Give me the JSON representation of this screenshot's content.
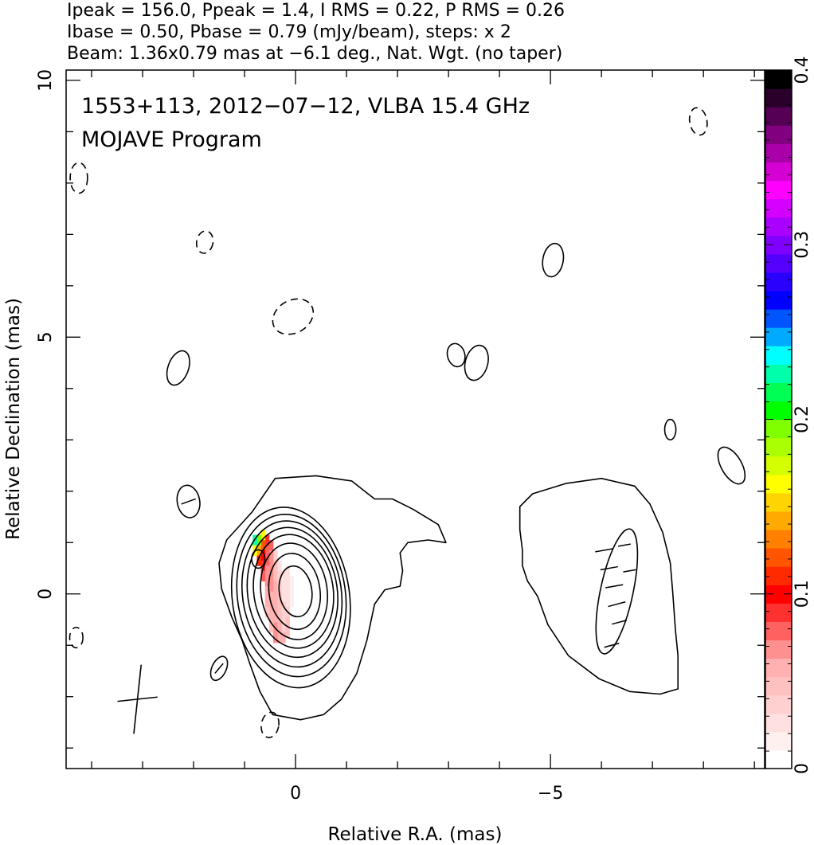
{
  "header": {
    "line1": "Ipeak = 156.0, Ppeak = 1.4, I RMS = 0.22, P RMS = 0.26",
    "line2": "Ibase = 0.50, Pbase = 0.79 (mJy/beam), steps: x 2",
    "line3": "Beam: 1.36x0.79 mas at −6.1 deg., Nat. Wgt. (no taper)"
  },
  "chart_data": {
    "type": "contour",
    "source": "1553+113, 2012−07−12, VLBA 15.4 GHz",
    "program": "MOJAVE Program",
    "xlabel": "Relative R.A. (mas)",
    "ylabel": "Relative Declination (mas)",
    "xlim": [
      4.5,
      -9.2
    ],
    "ylim": [
      -3.4,
      10.2
    ],
    "x_ticks": [
      0,
      -5
    ],
    "x_tick_labels": [
      "0",
      "−5"
    ],
    "y_ticks": [
      0,
      5,
      10
    ],
    "y_tick_labels": [
      "0",
      "5",
      "10"
    ],
    "colorbar": {
      "min": 0,
      "max": 0.4,
      "ticks": [
        0,
        0.1,
        0.2,
        0.3,
        0.4
      ],
      "tick_labels": [
        "0",
        "0.1",
        "0.2",
        "0.3",
        "0.4"
      ],
      "colors": [
        "#ffffff",
        "#fff0f0",
        "#ffe0e0",
        "#ffd0d0",
        "#ffc0c0",
        "#ffb0b0",
        "#ff9090",
        "#ff6060",
        "#ff3030",
        "#ff0000",
        "#ff2a00",
        "#ff5500",
        "#ff8000",
        "#ffaa00",
        "#ffd400",
        "#ffff00",
        "#d4ff00",
        "#aaff00",
        "#80ff00",
        "#00ff00",
        "#00ff55",
        "#00ffaa",
        "#00ffff",
        "#00aaff",
        "#0055ff",
        "#0000ff",
        "#2a00ff",
        "#5500ff",
        "#8000ff",
        "#aa00ff",
        "#d400ff",
        "#ff00ff",
        "#d400d4",
        "#aa00aa",
        "#800080",
        "#550055",
        "#2a002a",
        "#000000"
      ]
    },
    "core_contour_ellipses": [
      {
        "x": 0.0,
        "y": 0.05,
        "rx": 0.32,
        "ry": 0.5,
        "angle": -8
      },
      {
        "x": 0.02,
        "y": 0.05,
        "rx": 0.5,
        "ry": 0.75,
        "angle": -8
      },
      {
        "x": 0.03,
        "y": 0.05,
        "rx": 0.65,
        "ry": 0.95,
        "angle": -8
      },
      {
        "x": 0.04,
        "y": 0.05,
        "rx": 0.78,
        "ry": 1.12,
        "angle": -8
      },
      {
        "x": 0.06,
        "y": 0.03,
        "rx": 0.88,
        "ry": 1.28,
        "angle": -8
      },
      {
        "x": 0.07,
        "y": 0.0,
        "rx": 0.97,
        "ry": 1.44,
        "angle": -8
      },
      {
        "x": 0.08,
        "y": -0.03,
        "rx": 1.06,
        "ry": 1.6,
        "angle": -8
      },
      {
        "x": 0.09,
        "y": -0.07,
        "rx": 1.15,
        "ry": 1.78,
        "angle": -8
      }
    ],
    "outer_contours": [
      [
        [
          -1.55,
          1.85
        ],
        [
          -1.1,
          2.2
        ],
        [
          -0.4,
          2.3
        ],
        [
          0.4,
          2.25
        ],
        [
          0.85,
          1.6
        ],
        [
          1.35,
          1.05
        ],
        [
          1.5,
          0.6
        ],
        [
          1.45,
          0.1
        ],
        [
          1.25,
          -0.45
        ],
        [
          1.05,
          -0.9
        ],
        [
          0.9,
          -1.35
        ],
        [
          0.7,
          -1.9
        ],
        [
          0.45,
          -2.35
        ],
        [
          -0.1,
          -2.45
        ],
        [
          -0.55,
          -2.35
        ],
        [
          -0.9,
          -2.05
        ],
        [
          -1.2,
          -1.55
        ],
        [
          -1.4,
          -0.9
        ],
        [
          -1.55,
          -0.2
        ],
        [
          -1.75,
          0.08
        ],
        [
          -2.05,
          0.15
        ],
        [
          -2.1,
          0.45
        ],
        [
          -2.05,
          0.8
        ],
        [
          -2.2,
          1.0
        ],
        [
          -2.6,
          1.05
        ],
        [
          -2.95,
          1.0
        ],
        [
          -2.8,
          1.35
        ],
        [
          -2.3,
          1.65
        ],
        [
          -1.9,
          1.85
        ]
      ],
      [
        [
          -4.45,
          0.85
        ],
        [
          -4.4,
          1.25
        ],
        [
          -4.4,
          1.7
        ],
        [
          -4.65,
          1.95
        ],
        [
          -5.3,
          2.15
        ],
        [
          -6.0,
          2.25
        ],
        [
          -6.65,
          2.1
        ],
        [
          -6.95,
          1.75
        ],
        [
          -7.2,
          1.2
        ],
        [
          -7.35,
          0.6
        ],
        [
          -7.4,
          0.0
        ],
        [
          -7.45,
          -0.7
        ],
        [
          -7.5,
          -1.2
        ],
        [
          -7.5,
          -1.85
        ],
        [
          -7.15,
          -1.95
        ],
        [
          -6.55,
          -1.9
        ],
        [
          -5.95,
          -1.65
        ],
        [
          -5.35,
          -1.2
        ],
        [
          -4.95,
          -0.6
        ],
        [
          -4.75,
          -0.05
        ],
        [
          -4.55,
          0.25
        ],
        [
          -4.45,
          0.55
        ]
      ]
    ],
    "small_contour_ellipses": [
      {
        "x": 2.3,
        "y": 4.4,
        "rx": 0.2,
        "ry": 0.35,
        "angle": 20,
        "dashed": false
      },
      {
        "x": 2.1,
        "y": 1.8,
        "rx": 0.22,
        "ry": 0.32,
        "angle": -10,
        "dashed": false
      },
      {
        "x": 0.73,
        "y": 0.68,
        "rx": 0.13,
        "ry": 0.18,
        "angle": 0,
        "dashed": false
      },
      {
        "x": 1.5,
        "y": -1.45,
        "rx": 0.14,
        "ry": 0.25,
        "angle": 25,
        "dashed": false
      },
      {
        "x": -3.15,
        "y": 4.65,
        "rx": 0.17,
        "ry": 0.23,
        "angle": -15,
        "dashed": false
      },
      {
        "x": -3.55,
        "y": 4.5,
        "rx": 0.22,
        "ry": 0.35,
        "angle": 15,
        "dashed": false
      },
      {
        "x": -5.05,
        "y": 6.5,
        "rx": 0.2,
        "ry": 0.33,
        "angle": 10,
        "dashed": false
      },
      {
        "x": -7.35,
        "y": 3.2,
        "rx": 0.11,
        "ry": 0.2,
        "angle": 0,
        "dashed": false
      },
      {
        "x": -8.55,
        "y": 2.5,
        "rx": 0.2,
        "ry": 0.4,
        "angle": -30,
        "dashed": false
      },
      {
        "x": -6.3,
        "y": 0.05,
        "rx": 0.32,
        "ry": 1.25,
        "angle": 12,
        "dashed": false
      },
      {
        "x": 0.05,
        "y": 5.4,
        "rx": 0.42,
        "ry": 0.32,
        "angle": -30,
        "dashed": true
      },
      {
        "x": 1.78,
        "y": 6.85,
        "rx": 0.16,
        "ry": 0.22,
        "angle": 10,
        "dashed": true
      },
      {
        "x": 4.25,
        "y": 8.1,
        "rx": 0.17,
        "ry": 0.3,
        "angle": 0,
        "dashed": true
      },
      {
        "x": -7.9,
        "y": 9.2,
        "rx": 0.17,
        "ry": 0.27,
        "angle": -10,
        "dashed": true
      },
      {
        "x": 4.3,
        "y": -0.85,
        "rx": 0.13,
        "ry": 0.2,
        "angle": 0,
        "dashed": true
      },
      {
        "x": 0.5,
        "y": -2.55,
        "rx": 0.17,
        "ry": 0.25,
        "angle": 10,
        "dashed": true
      }
    ],
    "polarization_pixels": [
      {
        "x": 0.08,
        "y": 0.25,
        "v": 0.02
      },
      {
        "x": 0.08,
        "y": 0.05,
        "v": 0.02
      },
      {
        "x": 0.08,
        "y": -0.15,
        "v": 0.02
      },
      {
        "x": 0.16,
        "y": 0.45,
        "v": 0.025
      },
      {
        "x": 0.16,
        "y": 0.25,
        "v": 0.03
      },
      {
        "x": 0.16,
        "y": 0.05,
        "v": 0.03
      },
      {
        "x": 0.16,
        "y": -0.15,
        "v": 0.03
      },
      {
        "x": 0.16,
        "y": -0.35,
        "v": 0.035
      },
      {
        "x": 0.16,
        "y": -0.55,
        "v": 0.05
      },
      {
        "x": 0.16,
        "y": -0.75,
        "v": 0.05
      },
      {
        "x": 0.24,
        "y": 0.35,
        "v": 0.03
      },
      {
        "x": 0.24,
        "y": 0.15,
        "v": 0.03
      },
      {
        "x": 0.24,
        "y": -0.05,
        "v": 0.03
      },
      {
        "x": 0.24,
        "y": -0.25,
        "v": 0.035
      },
      {
        "x": 0.24,
        "y": -0.45,
        "v": 0.035
      },
      {
        "x": 0.24,
        "y": -0.65,
        "v": 0.04
      },
      {
        "x": 0.24,
        "y": -0.85,
        "v": 0.055
      },
      {
        "x": 0.32,
        "y": 0.55,
        "v": 0.03
      },
      {
        "x": 0.32,
        "y": 0.35,
        "v": 0.035
      },
      {
        "x": 0.32,
        "y": 0.15,
        "v": 0.04
      },
      {
        "x": 0.32,
        "y": -0.05,
        "v": 0.045
      },
      {
        "x": 0.32,
        "y": -0.25,
        "v": 0.045
      },
      {
        "x": 0.32,
        "y": -0.45,
        "v": 0.05
      },
      {
        "x": 0.32,
        "y": -0.65,
        "v": 0.055
      },
      {
        "x": 0.32,
        "y": -0.85,
        "v": 0.06
      },
      {
        "x": 0.4,
        "y": 0.75,
        "v": 0.04
      },
      {
        "x": 0.4,
        "y": 0.55,
        "v": 0.045
      },
      {
        "x": 0.4,
        "y": 0.35,
        "v": 0.05
      },
      {
        "x": 0.4,
        "y": 0.15,
        "v": 0.055
      },
      {
        "x": 0.4,
        "y": -0.05,
        "v": 0.055
      },
      {
        "x": 0.4,
        "y": -0.25,
        "v": 0.055
      },
      {
        "x": 0.4,
        "y": -0.45,
        "v": 0.06
      },
      {
        "x": 0.4,
        "y": -0.65,
        "v": 0.065
      },
      {
        "x": 0.4,
        "y": -0.85,
        "v": 0.07
      },
      {
        "x": 0.48,
        "y": 0.95,
        "v": 0.075
      },
      {
        "x": 0.48,
        "y": 0.75,
        "v": 0.07
      },
      {
        "x": 0.48,
        "y": 0.55,
        "v": 0.07
      },
      {
        "x": 0.48,
        "y": 0.35,
        "v": 0.065
      },
      {
        "x": 0.48,
        "y": 0.15,
        "v": 0.065
      },
      {
        "x": 0.48,
        "y": -0.05,
        "v": 0.06
      },
      {
        "x": 0.48,
        "y": -0.25,
        "v": 0.06
      },
      {
        "x": 0.48,
        "y": -0.45,
        "v": 0.055
      },
      {
        "x": 0.48,
        "y": -0.65,
        "v": 0.05
      },
      {
        "x": 0.56,
        "y": 1.05,
        "v": 0.085
      },
      {
        "x": 0.56,
        "y": 0.85,
        "v": 0.08
      },
      {
        "x": 0.56,
        "y": 0.65,
        "v": 0.075
      },
      {
        "x": 0.56,
        "y": 0.45,
        "v": 0.07
      },
      {
        "x": 0.56,
        "y": 0.25,
        "v": 0.065
      },
      {
        "x": 0.56,
        "y": 0.05,
        "v": 0.06
      },
      {
        "x": 0.56,
        "y": -0.15,
        "v": 0.055
      },
      {
        "x": 0.56,
        "y": -0.35,
        "v": 0.05
      },
      {
        "x": 0.64,
        "y": 1.15,
        "v": 0.16
      },
      {
        "x": 0.64,
        "y": 0.95,
        "v": 0.12
      },
      {
        "x": 0.64,
        "y": 0.75,
        "v": 0.1
      },
      {
        "x": 0.64,
        "y": 0.55,
        "v": 0.09
      },
      {
        "x": 0.64,
        "y": 0.35,
        "v": 0.075
      },
      {
        "x": 0.72,
        "y": 1.05,
        "v": 0.19
      },
      {
        "x": 0.72,
        "y": 0.85,
        "v": 0.14
      },
      {
        "x": 0.72,
        "y": 0.65,
        "v": 0.11
      },
      {
        "x": 0.8,
        "y": 1.05,
        "v": 0.23
      },
      {
        "x": 0.8,
        "y": 0.85,
        "v": 0.16
      }
    ],
    "evpa_ticks": [
      {
        "x": 2.1,
        "y": 1.8,
        "angle": 70,
        "length": 0.3
      },
      {
        "x": 1.5,
        "y": -1.45,
        "angle": 40,
        "length": 0.25
      },
      {
        "x": -6.05,
        "y": 0.85,
        "angle": 80,
        "length": 0.35
      },
      {
        "x": -6.15,
        "y": 0.5,
        "angle": 80,
        "length": 0.35
      },
      {
        "x": -6.25,
        "y": 0.15,
        "angle": 80,
        "length": 0.35
      },
      {
        "x": -6.3,
        "y": -0.2,
        "angle": 75,
        "length": 0.35
      },
      {
        "x": -6.35,
        "y": -0.55,
        "angle": 75,
        "length": 0.3
      },
      {
        "x": -6.2,
        "y": -1.0,
        "angle": 75,
        "length": 0.3
      },
      {
        "x": -6.45,
        "y": 0.95,
        "angle": 80,
        "length": 0.25
      },
      {
        "x": -6.55,
        "y": 0.45,
        "angle": 80,
        "length": 0.25
      }
    ],
    "beam": {
      "x": 3.1,
      "y": -2.05,
      "major": 1.36,
      "minor": 0.79,
      "pa": -6.1
    }
  }
}
